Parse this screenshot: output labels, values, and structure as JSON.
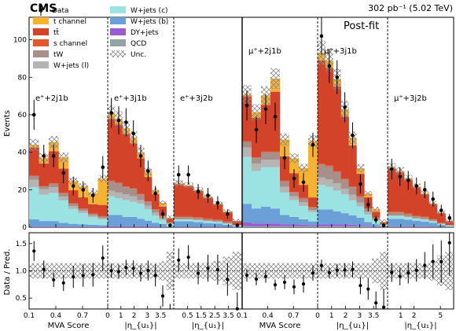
{
  "header": {
    "experiment": "CMS",
    "lumi": "302 pb⁻¹ (5.02 TeV)",
    "tag": "Post-fit"
  },
  "legend": {
    "data_label": "Data",
    "uncertainty_label": "Unc.",
    "entries": [
      {
        "key": "tch",
        "label": "t channel",
        "color": "#f8b231"
      },
      {
        "key": "ttbar",
        "label": "tt̄",
        "color": "#d2432a"
      },
      {
        "key": "sch",
        "label": "s channel",
        "color": "#e2582c"
      },
      {
        "key": "tw",
        "label": "tW",
        "color": "#a88f8a"
      },
      {
        "key": "wl",
        "label": "W+jets (l)",
        "color": "#b4b4b4"
      },
      {
        "key": "wc",
        "label": "W+jets (c)",
        "color": "#9be3e3"
      },
      {
        "key": "wb",
        "label": "W+jets (b)",
        "color": "#6a9fd8"
      },
      {
        "key": "dy",
        "label": "DY+jets",
        "color": "#9c5bd1"
      },
      {
        "key": "qcd",
        "label": "QCD",
        "color": "#94a4a2"
      }
    ]
  },
  "axes": {
    "y_label": "Events",
    "ratio_y_label": "Data / Pred.",
    "y_ticks": [
      "0",
      "20",
      "40",
      "60",
      "80",
      "100"
    ],
    "ratio_ticks": [
      "0.5",
      "1.0",
      "1.5"
    ]
  },
  "chart_data": {
    "type": "bar",
    "stacked": true,
    "ylim": [
      0,
      112
    ],
    "ratio_ylim": [
      0.3,
      1.7
    ],
    "component_order": [
      "qcd",
      "dy",
      "wb",
      "wc",
      "wl",
      "tw",
      "sch",
      "ttbar",
      "tch"
    ],
    "regions": [
      {
        "label": "e⁺+2j1b",
        "x_label": "MVA Score",
        "x_ticks": [
          {
            "v": 0,
            "label": "0.1"
          },
          {
            "v": 0.34,
            "label": "0.4"
          },
          {
            "v": 0.68,
            "label": "0.7"
          }
        ],
        "bins": [
          {
            "qcd": 0,
            "dy": 0.3,
            "wb": 4,
            "wc": 17,
            "wl": 4,
            "tw": 2,
            "sch": 0.2,
            "ttbar": 15,
            "tch": 1.5
          },
          {
            "qcd": 0,
            "dy": 0.3,
            "wb": 3,
            "wc": 14,
            "wl": 3,
            "tw": 1.5,
            "sch": 0.2,
            "ttbar": 12,
            "tch": 3
          },
          {
            "qcd": 0,
            "dy": 0.3,
            "wb": 3,
            "wc": 15,
            "wl": 3,
            "tw": 2,
            "sch": 0.2,
            "ttbar": 17,
            "tch": 5
          },
          {
            "qcd": 0,
            "dy": 0.3,
            "wb": 2,
            "wc": 12,
            "wl": 2,
            "tw": 1.8,
            "sch": 0.2,
            "ttbar": 13,
            "tch": 6
          },
          {
            "qcd": 0,
            "dy": 0.3,
            "wb": 1.5,
            "wc": 8,
            "wl": 1.5,
            "tw": 1.2,
            "sch": 0.2,
            "ttbar": 7,
            "tch": 5
          },
          {
            "qcd": 0,
            "dy": 0.3,
            "wb": 1.2,
            "wc": 6,
            "wl": 1.2,
            "tw": 1,
            "sch": 0.2,
            "ttbar": 6,
            "tch": 6
          },
          {
            "qcd": 0,
            "dy": 0.3,
            "wb": 1,
            "wc": 4,
            "wl": 1,
            "tw": 0.8,
            "sch": 0.2,
            "ttbar": 5,
            "tch": 6
          },
          {
            "qcd": 0,
            "dy": 0.3,
            "wb": 0.8,
            "wc": 3,
            "wl": 0.8,
            "tw": 0.8,
            "sch": 0.2,
            "ttbar": 6,
            "tch": 14
          }
        ],
        "data": [
          60,
          38,
          38,
          29,
          22,
          20,
          17,
          32
        ],
        "data_err": [
          8,
          6,
          6,
          5.5,
          5,
          4.5,
          4,
          6
        ]
      },
      {
        "label": "e⁺+3j1b",
        "x_label": "|η_{u₁}|",
        "x_ticks": [
          {
            "v": 0,
            "label": "0"
          },
          {
            "v": 0.2,
            "label": "1"
          },
          {
            "v": 0.4,
            "label": "2"
          },
          {
            "v": 0.6,
            "label": "3"
          },
          {
            "v": 0.8,
            "label": "3.5"
          }
        ],
        "bins": [
          {
            "qcd": 0,
            "dy": 0.5,
            "wb": 6,
            "wc": 10,
            "wl": 3,
            "tw": 5,
            "sch": 0.3,
            "ttbar": 33,
            "tch": 3
          },
          {
            "qcd": 0,
            "dy": 0.5,
            "wb": 6,
            "wc": 9,
            "wl": 3,
            "tw": 5,
            "sch": 0.3,
            "ttbar": 31,
            "tch": 3
          },
          {
            "qcd": 0,
            "dy": 0.5,
            "wb": 5,
            "wc": 9,
            "wl": 3,
            "tw": 4,
            "sch": 0.3,
            "ttbar": 28,
            "tch": 3
          },
          {
            "qcd": 0,
            "dy": 0.5,
            "wb": 5,
            "wc": 8,
            "wl": 3,
            "tw": 4,
            "sch": 0.3,
            "ttbar": 24,
            "tch": 3
          },
          {
            "qcd": 0,
            "dy": 0.5,
            "wb": 4,
            "wc": 8,
            "wl": 2,
            "tw": 3,
            "sch": 0.3,
            "ttbar": 19,
            "tch": 3
          },
          {
            "qcd": 0,
            "dy": 0.5,
            "wb": 3,
            "wc": 6,
            "wl": 2,
            "tw": 2,
            "sch": 0.3,
            "ttbar": 13,
            "tch": 3
          },
          {
            "qcd": 0,
            "dy": 0.3,
            "wb": 2,
            "wc": 4,
            "wl": 1.5,
            "tw": 1.5,
            "sch": 0.3,
            "ttbar": 8,
            "tch": 2
          },
          {
            "qcd": 0,
            "dy": 0.3,
            "wb": 1.5,
            "wc": 2,
            "wl": 1,
            "tw": 1,
            "sch": 0.2,
            "ttbar": 5,
            "tch": 2
          },
          {
            "qcd": 0,
            "dy": 0,
            "wb": 0.5,
            "wc": 1,
            "wl": 0.5,
            "tw": 0.5,
            "sch": 0.1,
            "ttbar": 2,
            "tch": 0.5
          }
        ],
        "data": [
          61,
          57,
          56,
          50,
          38,
          30,
          18,
          7,
          1
        ],
        "data_err": [
          8,
          7.5,
          7.5,
          7,
          6,
          5.5,
          4,
          2.5,
          1
        ]
      },
      {
        "label": "e⁺+3j2b",
        "x_label": "|η_{u₁}|",
        "x_ticks": [
          {
            "v": 0.2,
            "label": "0.5"
          },
          {
            "v": 0.4,
            "label": "1.5"
          },
          {
            "v": 0.6,
            "label": "2.5"
          },
          {
            "v": 0.8,
            "label": "3.5"
          }
        ],
        "bins": [
          {
            "qcd": 0,
            "dy": 0.2,
            "wb": 3,
            "wc": 1,
            "wl": 0.2,
            "tw": 1,
            "sch": 0.5,
            "ttbar": 17,
            "tch": 0.5
          },
          {
            "qcd": 0,
            "dy": 0.2,
            "wb": 3,
            "wc": 1,
            "wl": 0.2,
            "tw": 1,
            "sch": 0.5,
            "ttbar": 16,
            "tch": 0.5
          },
          {
            "qcd": 0,
            "dy": 0.2,
            "wb": 2.5,
            "wc": 1,
            "wl": 0.2,
            "tw": 1,
            "sch": 0.5,
            "ttbar": 14,
            "tch": 0.5
          },
          {
            "qcd": 0,
            "dy": 0.2,
            "wb": 2,
            "wc": 1,
            "wl": 0.2,
            "tw": 0.8,
            "sch": 0.5,
            "ttbar": 11,
            "tch": 0.5
          },
          {
            "qcd": 0,
            "dy": 0.2,
            "wb": 1.8,
            "wc": 0.8,
            "wl": 0.2,
            "tw": 0.8,
            "sch": 0.4,
            "ttbar": 8,
            "tch": 0.5
          },
          {
            "qcd": 0,
            "dy": 0.1,
            "wb": 1.2,
            "wc": 0.6,
            "wl": 0.2,
            "tw": 0.6,
            "sch": 0.3,
            "ttbar": 5,
            "tch": 0.3
          },
          {
            "qcd": 0,
            "dy": 0,
            "wb": 0.5,
            "wc": 0.3,
            "wl": 0.1,
            "tw": 0.2,
            "sch": 0.1,
            "ttbar": 2,
            "tch": 0.1
          }
        ],
        "data": [
          28,
          28,
          19,
          17,
          13,
          7,
          1
        ],
        "data_err": [
          5,
          5,
          4,
          4,
          3.5,
          2.5,
          1
        ]
      },
      {
        "label": "μ⁺+2j1b",
        "x_label": "MVA Score",
        "x_ticks": [
          {
            "v": 0,
            "label": "0.1"
          },
          {
            "v": 0.34,
            "label": "0.4"
          },
          {
            "v": 0.68,
            "label": "0.7"
          }
        ],
        "bins": [
          {
            "qcd": 0.5,
            "dy": 2,
            "wb": 10,
            "wc": 25,
            "wl": 5,
            "tw": 3,
            "sch": 0.3,
            "ttbar": 24,
            "tch": 1
          },
          {
            "qcd": 0.5,
            "dy": 1.5,
            "wb": 8,
            "wc": 20,
            "wl": 4,
            "tw": 3,
            "sch": 0.3,
            "ttbar": 21,
            "tch": 3
          },
          {
            "qcd": 0.5,
            "dy": 1.5,
            "wb": 9,
            "wc": 21,
            "wl": 4,
            "tw": 4,
            "sch": 0.3,
            "ttbar": 25,
            "tch": 5
          },
          {
            "qcd": 0.5,
            "dy": 1.5,
            "wb": 8,
            "wc": 22,
            "wl": 4,
            "tw": 4,
            "sch": 0.3,
            "ttbar": 32,
            "tch": 7
          },
          {
            "qcd": 0.5,
            "dy": 1,
            "wb": 5,
            "wc": 12,
            "wl": 3,
            "tw": 3,
            "sch": 0.3,
            "ttbar": 13,
            "tch": 9
          },
          {
            "qcd": 0.5,
            "dy": 1,
            "wb": 4,
            "wc": 9,
            "wl": 2,
            "tw": 2,
            "sch": 0.3,
            "ttbar": 10,
            "tch": 8
          },
          {
            "qcd": 0.5,
            "dy": 0.8,
            "wb": 3,
            "wc": 7,
            "wl": 2,
            "tw": 2,
            "sch": 0.3,
            "ttbar": 7,
            "tch": 9
          },
          {
            "qcd": 0.5,
            "dy": 0.6,
            "wb": 2,
            "wc": 5,
            "wl": 1,
            "tw": 1.5,
            "sch": 0.3,
            "ttbar": 5,
            "tch": 30
          }
        ],
        "data": [
          65,
          52,
          63,
          59,
          37,
          26,
          24,
          44
        ],
        "data_err": [
          8,
          7,
          8,
          7.5,
          6,
          5,
          5,
          6.5
        ]
      },
      {
        "label": "μ⁺+3j1b",
        "x_label": "|η_{u₁}|",
        "x_ticks": [
          {
            "v": 0,
            "label": "0"
          },
          {
            "v": 0.2,
            "label": "1"
          },
          {
            "v": 0.4,
            "label": "2"
          },
          {
            "v": 0.6,
            "label": "3"
          },
          {
            "v": 0.8,
            "label": "3.5"
          }
        ],
        "bins": [
          {
            "qcd": 0.5,
            "dy": 1,
            "wb": 8,
            "wc": 13,
            "wl": 4,
            "tw": 7,
            "sch": 0.5,
            "ttbar": 55,
            "tch": 4
          },
          {
            "qcd": 0.5,
            "dy": 1,
            "wb": 8,
            "wc": 12,
            "wl": 4,
            "tw": 7,
            "sch": 0.5,
            "ttbar": 52,
            "tch": 4
          },
          {
            "qcd": 0.5,
            "dy": 1,
            "wb": 7,
            "wc": 11,
            "wl": 4,
            "tw": 6,
            "sch": 0.5,
            "ttbar": 45,
            "tch": 4
          },
          {
            "qcd": 0.5,
            "dy": 1,
            "wb": 6,
            "wc": 10,
            "wl": 3,
            "tw": 5,
            "sch": 0.5,
            "ttbar": 33,
            "tch": 4
          },
          {
            "qcd": 0.5,
            "dy": 0.8,
            "wb": 5,
            "wc": 8,
            "wl": 3,
            "tw": 4,
            "sch": 0.4,
            "ttbar": 22,
            "tch": 4
          },
          {
            "qcd": 0.5,
            "dy": 0.6,
            "wb": 4,
            "wc": 6,
            "wl": 2,
            "tw": 3,
            "sch": 0.4,
            "ttbar": 12,
            "tch": 3
          },
          {
            "qcd": 0.3,
            "dy": 0.4,
            "wb": 2,
            "wc": 4,
            "wl": 1.5,
            "tw": 1.5,
            "sch": 0.3,
            "ttbar": 6,
            "tch": 2
          },
          {
            "qcd": 0.2,
            "dy": 0.3,
            "wb": 1,
            "wc": 2,
            "wl": 0.5,
            "tw": 1,
            "sch": 0.2,
            "ttbar": 3,
            "tch": 1.5
          },
          {
            "qcd": 0.1,
            "dy": 0.1,
            "wb": 0.3,
            "wc": 0.5,
            "wl": 0.2,
            "tw": 0.3,
            "sch": 0.1,
            "ttbar": 1,
            "tch": 0.4
          }
        ],
        "data": [
          102,
          86,
          80,
          64,
          49,
          23,
          12,
          4,
          1
        ],
        "data_err": [
          10,
          9,
          9,
          8,
          7,
          5,
          3.5,
          2,
          1
        ]
      },
      {
        "label": "μ⁺+3j2b",
        "x_label": "|η_{u₁}|",
        "x_ticks": [
          {
            "v": 0.2,
            "label": "1"
          },
          {
            "v": 0.4,
            "label": "2"
          },
          {
            "v": 0.8,
            "label": "5"
          }
        ],
        "bins": [
          {
            "qcd": 0.2,
            "dy": 0.3,
            "wb": 4,
            "wc": 1.5,
            "wl": 0.3,
            "tw": 1.5,
            "sch": 0.5,
            "ttbar": 23,
            "tch": 0.7
          },
          {
            "qcd": 0.2,
            "dy": 0.3,
            "wb": 4,
            "wc": 1.5,
            "wl": 0.3,
            "tw": 1.5,
            "sch": 0.5,
            "ttbar": 21,
            "tch": 0.7
          },
          {
            "qcd": 0.2,
            "dy": 0.3,
            "wb": 3.5,
            "wc": 1.3,
            "wl": 0.3,
            "tw": 1.3,
            "sch": 0.5,
            "ttbar": 18,
            "tch": 0.6
          },
          {
            "qcd": 0.2,
            "dy": 0.3,
            "wb": 3,
            "wc": 1,
            "wl": 0.3,
            "tw": 1,
            "sch": 0.5,
            "ttbar": 15,
            "tch": 0.5
          },
          {
            "qcd": 0.2,
            "dy": 0.3,
            "wb": 2.5,
            "wc": 1,
            "wl": 0.3,
            "tw": 1,
            "sch": 0.4,
            "ttbar": 12,
            "tch": 0.5
          },
          {
            "qcd": 0.1,
            "dy": 0.2,
            "wb": 2,
            "wc": 0.8,
            "wl": 0.2,
            "tw": 0.8,
            "sch": 0.3,
            "ttbar": 8,
            "tch": 0.4
          },
          {
            "qcd": 0.1,
            "dy": 0.1,
            "wb": 1,
            "wc": 0.5,
            "wl": 0.1,
            "tw": 0.5,
            "sch": 0.2,
            "ttbar": 5,
            "tch": 0.2
          },
          {
            "qcd": 0,
            "dy": 0,
            "wb": 0.5,
            "wc": 0.3,
            "wl": 0.1,
            "tw": 0.2,
            "sch": 0.1,
            "ttbar": 2,
            "tch": 0.1
          }
        ],
        "data": [
          31,
          27,
          25,
          22,
          20,
          15,
          9,
          5
        ],
        "data_err": [
          5.5,
          5,
          5,
          4.5,
          4.5,
          4,
          3,
          2
        ]
      }
    ]
  }
}
